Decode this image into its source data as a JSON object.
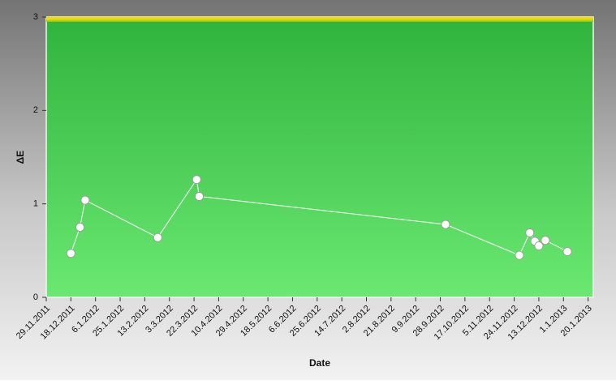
{
  "chart_data": {
    "type": "line",
    "x_label": "Date",
    "y_label": "ΔE",
    "x": [
      "2011-12-18",
      "2011-12-25",
      "2011-12-29",
      "2012-02-23",
      "2012-03-24",
      "2012-03-26",
      "2012-10-02",
      "2012-11-28",
      "2012-12-06",
      "2012-12-10",
      "2012-12-13",
      "2012-12-18",
      "2013-01-04"
    ],
    "values": [
      0.47,
      0.75,
      1.04,
      0.64,
      1.26,
      1.08,
      0.78,
      0.45,
      0.69,
      0.6,
      0.55,
      0.61,
      0.49
    ],
    "color": "#ffffff",
    "xlim": [
      "2011-11-29",
      "2013-01-24"
    ],
    "xticks": [
      {
        "value": "2011-11-29",
        "label": "29.11.2011"
      },
      {
        "value": "2011-12-18",
        "label": "18.12.2011"
      },
      {
        "value": "2012-01-06",
        "label": "6.1.2012"
      },
      {
        "value": "2012-01-25",
        "label": "25.1.2012"
      },
      {
        "value": "2012-02-13",
        "label": "13.2.2012"
      },
      {
        "value": "2012-03-03",
        "label": "3.3.2012"
      },
      {
        "value": "2012-03-22",
        "label": "22.3.2012"
      },
      {
        "value": "2012-04-10",
        "label": "10.4.2012"
      },
      {
        "value": "2012-04-29",
        "label": "29.4.2012"
      },
      {
        "value": "2012-05-18",
        "label": "18.5.2012"
      },
      {
        "value": "2012-06-06",
        "label": "6.6.2012"
      },
      {
        "value": "2012-06-25",
        "label": "25.6.2012"
      },
      {
        "value": "2012-07-14",
        "label": "14.7.2012"
      },
      {
        "value": "2012-08-02",
        "label": "2.8.2012"
      },
      {
        "value": "2012-08-21",
        "label": "21.8.2012"
      },
      {
        "value": "2012-09-09",
        "label": "9.9.2012"
      },
      {
        "value": "2012-09-28",
        "label": "28.9.2012"
      },
      {
        "value": "2012-10-17",
        "label": "17.10.2012"
      },
      {
        "value": "2012-11-05",
        "label": "5.11.2012"
      },
      {
        "value": "2012-11-24",
        "label": "24.11.2012"
      },
      {
        "value": "2012-12-13",
        "label": "13.12.2012"
      },
      {
        "value": "2013-01-01",
        "label": "1.1.2013"
      },
      {
        "value": "2013-01-20",
        "label": "20.1.2013"
      }
    ],
    "ylim": [
      0,
      3
    ],
    "yticks": [
      0,
      1,
      2,
      3
    ]
  }
}
